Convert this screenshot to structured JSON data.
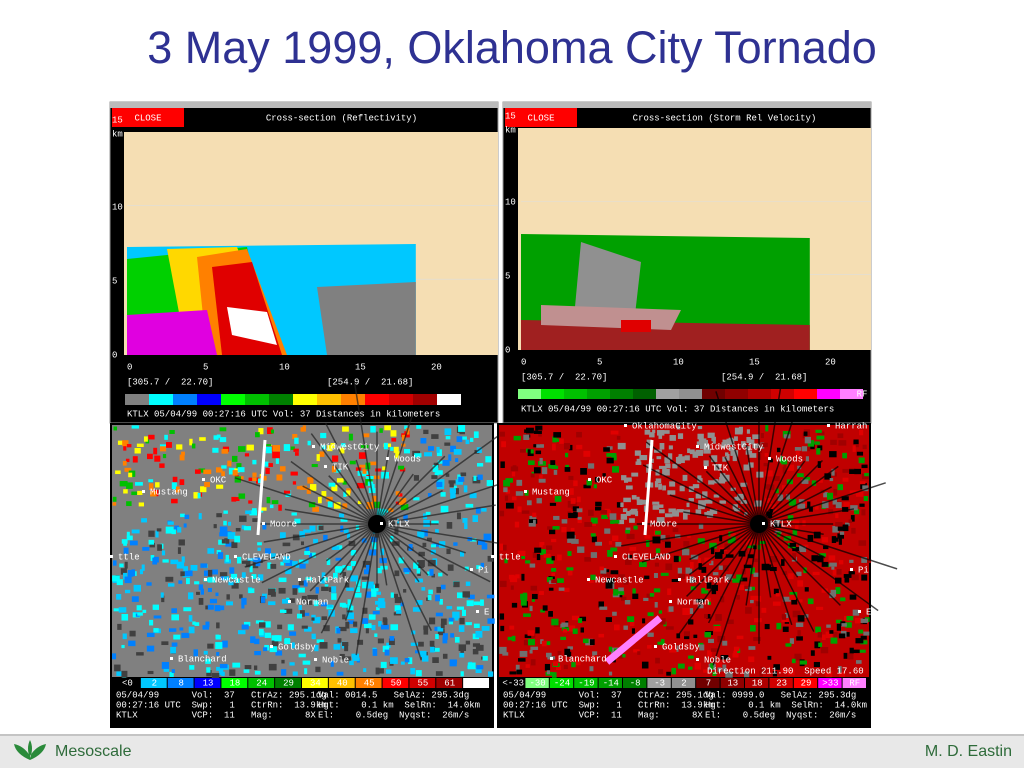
{
  "header": {
    "title": "3 May 1999, Oklahoma City Tornado"
  },
  "cross_reflectivity": {
    "button": "CLOSE",
    "title": "Cross-section (Reflectivity)",
    "y_unit": "km",
    "y_ticks": [
      "15",
      "10",
      "5",
      "0"
    ],
    "x_ticks": [
      "0",
      "5",
      "10",
      "15",
      "20"
    ],
    "left_coord": "[305.7 /  22.70]",
    "right_coord": "[254.9 /  21.68]",
    "info": "KTLX 05/04/99 00:27:16 UTC Vol: 37 Distances in kilometers"
  },
  "cross_velocity": {
    "button": "CLOSE",
    "title": "Cross-section (Storm Rel Velocity)",
    "y_unit": "km",
    "y_ticks": [
      "15",
      "10",
      "5",
      "0"
    ],
    "x_ticks": [
      "0",
      "5",
      "10",
      "15",
      "20"
    ],
    "left_coord": "[305.7 /  22.70]",
    "right_coord": "[254.9 /  21.68]",
    "colorbar_label": "RF",
    "info": "KTLX 05/04/99 00:27:16 UTC Vol: 37 Distances in kilometers"
  },
  "ppi_reflectivity": {
    "places": [
      "MidwestCity",
      "Woods",
      "TIK",
      "Mustang",
      "OKC",
      "Moore",
      "KTLX",
      "ttle",
      "CLEVELAND",
      "Newcastle",
      "HallPark",
      "Norman",
      "Goldsby",
      "Blanchard",
      "Noble",
      "Pi",
      "E"
    ],
    "colorbar": [
      "<0",
      "2",
      "8",
      "13",
      "18",
      "24",
      "29",
      "34",
      "40",
      "45",
      "50",
      "55",
      "61",
      ">65"
    ],
    "status": [
      {
        "left": "05/04/99      Vol:  37   CtrAz: 295.1dg",
        "right": "Val: 0014.5   SelAz: 295.3dg"
      },
      {
        "left": "00:27:16 UTC  Swp:   1   CtrRn:  13.9km",
        "right": "Hgt:    0.1 km  SelRn:  14.0km"
      },
      {
        "left": "KTLX          VCP:  11   Mag:      8X",
        "right": "El:    0.5deg  Nyqst:  26m/s"
      }
    ]
  },
  "ppi_velocity": {
    "places": [
      "OklahomaCity",
      "MidwestCity",
      "Harrah",
      "Woods",
      "TIK",
      "Mustang",
      "OKC",
      "Moore",
      "KTLX",
      "ttle",
      "CLEVELAND",
      "Newcastle",
      "HallPark",
      "Norman",
      "Goldsby",
      "Blanchard",
      "Noble",
      "Pi",
      "E"
    ],
    "annotation": "Direction 211.90  Speed 17.60",
    "colorbar": [
      "<-33",
      "-30",
      "-24",
      "-19",
      "-14",
      "-8",
      "-3",
      "2",
      "7",
      "13",
      "18",
      "23",
      "29",
      ">33",
      "RF"
    ],
    "status": [
      {
        "left": "05/04/99      Vol:  37   CtrAz: 295.1dg",
        "right": "Val: 0999.0   SelAz: 295.3dg"
      },
      {
        "left": "00:27:16 UTC  Swp:   1   CtrRn:  13.9km",
        "right": "Hgt:    0.1 km  SelRn:  14.0km"
      },
      {
        "left": "KTLX          VCP:  11   Mag:      8X",
        "right": "El:    0.5deg  Nyqst:  26m/s"
      }
    ]
  },
  "footer": {
    "left": "Mesoscale",
    "right": "M. D. Eastin"
  }
}
